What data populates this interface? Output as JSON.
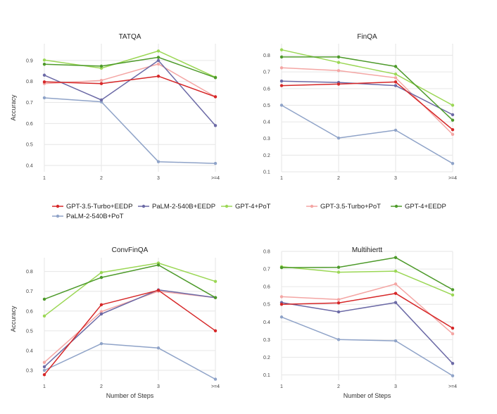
{
  "chart_data": {
    "type": "line",
    "x": [
      "1",
      "2",
      "3",
      ">=4"
    ],
    "xlabel": "Number of Steps",
    "ylabel": "Accuracy",
    "legend": [
      {
        "name": "GPT-3.5-Turbo+EEDP",
        "color": "#d62728"
      },
      {
        "name": "PaLM-2-540B+EEDP",
        "color": "#6c6aa6"
      },
      {
        "name": "GPT-4+PoT",
        "color": "#9bd755"
      },
      {
        "name": "GPT-3.5-Turbo+PoT",
        "color": "#f4a6a4"
      },
      {
        "name": "GPT-4+EEDP",
        "color": "#4d9a2a"
      },
      {
        "name": "PaLM-2-540B+PoT",
        "color": "#8fa3c8"
      }
    ],
    "panels": [
      {
        "title": "TATQA",
        "ylim": [
          0.37,
          0.98
        ],
        "yticks": [
          "0.4",
          "0.5",
          "0.6",
          "0.7",
          "0.8",
          "0.9"
        ],
        "series": [
          {
            "name": "PaLM-2-540B+PoT",
            "values": [
              0.722,
              0.703,
              0.418,
              0.41
            ]
          },
          {
            "name": "GPT-3.5-Turbo+PoT",
            "values": [
              0.79,
              0.805,
              0.883,
              0.727
            ]
          },
          {
            "name": "PaLM-2-540B+EEDP",
            "values": [
              0.83,
              0.712,
              0.9,
              0.59
            ]
          },
          {
            "name": "GPT-4+PoT",
            "values": [
              0.902,
              0.863,
              0.945,
              0.82
            ]
          },
          {
            "name": "GPT-3.5-Turbo+EEDP",
            "values": [
              0.798,
              0.79,
              0.825,
              0.727
            ]
          },
          {
            "name": "GPT-4+EEDP",
            "values": [
              0.882,
              0.873,
              0.915,
              0.818
            ]
          }
        ]
      },
      {
        "title": "FinQA",
        "ylim": [
          0.1,
          0.87
        ],
        "yticks": [
          "0.1",
          "0.2",
          "0.3",
          "0.4",
          "0.5",
          "0.6",
          "0.7",
          "0.8"
        ],
        "series": [
          {
            "name": "PaLM-2-540B+PoT",
            "values": [
              0.5,
              0.303,
              0.35,
              0.15
            ]
          },
          {
            "name": "GPT-3.5-Turbo+PoT",
            "values": [
              0.725,
              0.708,
              0.665,
              0.325
            ]
          },
          {
            "name": "PaLM-2-540B+EEDP",
            "values": [
              0.645,
              0.637,
              0.618,
              0.443
            ]
          },
          {
            "name": "GPT-4+PoT",
            "values": [
              0.833,
              0.757,
              0.687,
              0.5
            ]
          },
          {
            "name": "GPT-3.5-Turbo+EEDP",
            "values": [
              0.618,
              0.627,
              0.64,
              0.353
            ]
          },
          {
            "name": "GPT-4+EEDP",
            "values": [
              0.79,
              0.79,
              0.733,
              0.41
            ]
          }
        ]
      },
      {
        "title": "ConvFinQA",
        "ylim": [
          0.25,
          0.87
        ],
        "yticks": [
          "0.3",
          "0.4",
          "0.5",
          "0.6",
          "0.7",
          "0.8"
        ],
        "series": [
          {
            "name": "PaLM-2-540B+PoT",
            "values": [
              0.3,
              0.435,
              0.413,
              0.255
            ]
          },
          {
            "name": "GPT-3.5-Turbo+PoT",
            "values": [
              0.34,
              0.597,
              0.7,
              0.668
            ]
          },
          {
            "name": "PaLM-2-540B+EEDP",
            "values": [
              0.318,
              0.585,
              0.707,
              0.668
            ]
          },
          {
            "name": "GPT-4+PoT",
            "values": [
              0.575,
              0.795,
              0.843,
              0.75
            ]
          },
          {
            "name": "GPT-3.5-Turbo+EEDP",
            "values": [
              0.278,
              0.632,
              0.705,
              0.5
            ]
          },
          {
            "name": "GPT-4+EEDP",
            "values": [
              0.66,
              0.77,
              0.833,
              0.668
            ]
          }
        ]
      },
      {
        "title": "Multihiertt",
        "ylim": [
          0.07,
          0.8
        ],
        "yticks": [
          "0.1",
          "0.2",
          "0.3",
          "0.4",
          "0.5",
          "0.6",
          "0.7",
          "0.8"
        ],
        "series": [
          {
            "name": "PaLM-2-540B+PoT",
            "values": [
              0.428,
              0.3,
              0.293,
              0.095
            ]
          },
          {
            "name": "GPT-3.5-Turbo+PoT",
            "values": [
              0.543,
              0.527,
              0.615,
              0.333
            ]
          },
          {
            "name": "PaLM-2-540B+EEDP",
            "values": [
              0.51,
              0.457,
              0.51,
              0.165
            ]
          },
          {
            "name": "GPT-4+PoT",
            "values": [
              0.713,
              0.682,
              0.688,
              0.553
            ]
          },
          {
            "name": "GPT-3.5-Turbo+EEDP",
            "values": [
              0.5,
              0.508,
              0.562,
              0.365
            ]
          },
          {
            "name": "GPT-4+EEDP",
            "values": [
              0.708,
              0.71,
              0.765,
              0.583
            ]
          }
        ]
      }
    ]
  }
}
